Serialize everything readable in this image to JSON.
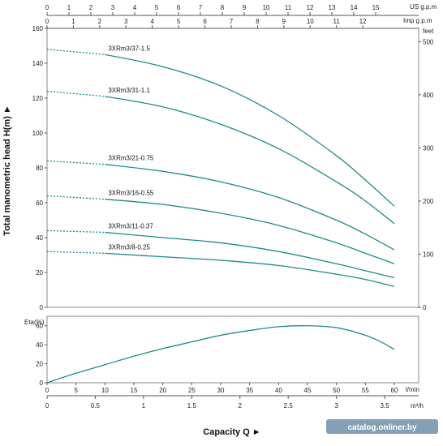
{
  "chart_data": [
    {
      "type": "line",
      "ylabel": "Total manometric head H(m) ►",
      "ylim": [
        0,
        160
      ],
      "yticks": [
        0,
        20,
        40,
        60,
        80,
        100,
        120,
        140,
        160
      ],
      "xlim": [
        0,
        60
      ],
      "y2label": "feet",
      "y2ticks": [
        0,
        100,
        200,
        300,
        400,
        500
      ],
      "top_axes": [
        {
          "unit": "US g.p.m",
          "ticks": [
            "0",
            "1",
            "2",
            "3",
            "4",
            "5",
            "6",
            "7",
            "8",
            "9",
            "10",
            "11",
            "12",
            "13",
            "14",
            "15"
          ]
        },
        {
          "unit": "Imp g.p.m",
          "ticks": [
            "0",
            "1",
            "2",
            "3",
            "4",
            "5",
            "6",
            "7",
            "8",
            "9",
            "10",
            "11",
            "12"
          ]
        }
      ],
      "series": [
        {
          "name": "3XRm3/37-1.5",
          "x": [
            0,
            10,
            20,
            30,
            40,
            50,
            55,
            60
          ],
          "y": [
            148,
            145,
            138,
            127,
            110,
            87,
            73,
            58
          ],
          "dashed_until_x": 10
        },
        {
          "name": "3XRm3/31-1.1",
          "x": [
            0,
            10,
            20,
            30,
            40,
            50,
            55,
            60
          ],
          "y": [
            124,
            121,
            115,
            105,
            91,
            72,
            61,
            48
          ],
          "dashed_until_x": 10
        },
        {
          "name": "3XRm3/21-0.75",
          "x": [
            0,
            10,
            20,
            30,
            40,
            50,
            55,
            60
          ],
          "y": [
            84,
            82,
            78,
            72,
            63,
            50,
            42,
            33
          ],
          "dashed_until_x": 10
        },
        {
          "name": "3XRm3/16-0.55",
          "x": [
            0,
            10,
            20,
            30,
            40,
            50,
            55,
            60
          ],
          "y": [
            64,
            62,
            59,
            54,
            47,
            37,
            31,
            25
          ],
          "dashed_until_x": 10
        },
        {
          "name": "3XRm3/11-0.37",
          "x": [
            0,
            10,
            20,
            30,
            40,
            50,
            55,
            60
          ],
          "y": [
            44,
            43,
            40,
            37,
            32,
            25,
            21,
            17
          ],
          "dashed_until_x": 10
        },
        {
          "name": "3XRm3/8-0.25",
          "x": [
            0,
            10,
            20,
            30,
            40,
            50,
            55,
            60
          ],
          "y": [
            32,
            31,
            29,
            27,
            24,
            19,
            16,
            12
          ],
          "dashed_until_x": 10
        }
      ],
      "color": "#1f8a8a"
    },
    {
      "type": "line",
      "ylabel": "Eta(%)",
      "ylim": [
        0,
        70
      ],
      "yticks": [
        0,
        20,
        40,
        60
      ],
      "xlim": [
        0,
        60
      ],
      "xticks": [
        0,
        5,
        10,
        15,
        20,
        25,
        30,
        35,
        40,
        45,
        50,
        55,
        60
      ],
      "xunit": "l/min",
      "x2ticks": [
        "0",
        "0.5",
        "1",
        "1.5",
        "2",
        "2.5",
        "3",
        "3.5"
      ],
      "x2unit": "m³/h",
      "xlabel": "Capacity Q ►",
      "series": [
        {
          "name": "Eta",
          "x": [
            0,
            5,
            10,
            15,
            20,
            25,
            30,
            35,
            40,
            45,
            50,
            55,
            58,
            60
          ],
          "y": [
            0,
            10,
            19,
            28,
            36,
            43,
            50,
            55,
            59,
            60,
            58,
            50,
            42,
            35
          ]
        }
      ],
      "color": "#1f8a8a"
    }
  ],
  "watermark": "catalog.onliner.by"
}
